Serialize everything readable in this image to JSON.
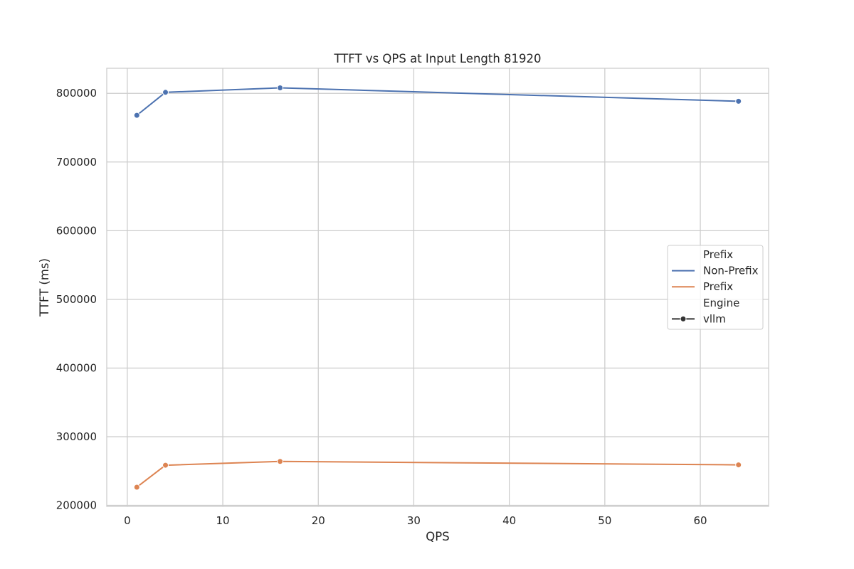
{
  "chart_data": {
    "type": "line",
    "title": "TTFT vs QPS at Input Length 81920",
    "xlabel": "QPS",
    "ylabel": "TTFT (ms)",
    "xlim": [
      -2.15,
      67.15
    ],
    "ylim": [
      198500,
      836500
    ],
    "xticks": [
      0,
      10,
      20,
      30,
      40,
      50,
      60
    ],
    "xtick_labels": [
      "0",
      "10",
      "20",
      "30",
      "40",
      "50",
      "60"
    ],
    "yticks": [
      200000,
      300000,
      400000,
      500000,
      600000,
      700000,
      800000
    ],
    "ytick_labels": [
      "200000",
      "300000",
      "400000",
      "500000",
      "600000",
      "700000",
      "800000"
    ],
    "grid": true,
    "series": [
      {
        "name": "Non-Prefix",
        "color": "#4c72b0",
        "marker": "circle",
        "x": [
          1,
          4,
          16,
          64
        ],
        "y": [
          768000,
          801500,
          808000,
          788500
        ]
      },
      {
        "name": "Prefix",
        "color": "#dd8452",
        "marker": "circle",
        "x": [
          1,
          4,
          16,
          64
        ],
        "y": [
          226500,
          258500,
          264000,
          259000
        ]
      }
    ],
    "legend": {
      "placement": "center-right",
      "entries": [
        {
          "label": "Prefix",
          "kind": "title"
        },
        {
          "label": "Non-Prefix",
          "kind": "line",
          "color": "#4c72b0"
        },
        {
          "label": "Prefix",
          "kind": "line",
          "color": "#dd8452"
        },
        {
          "label": "Engine",
          "kind": "title"
        },
        {
          "label": "vllm",
          "kind": "marker-line",
          "color": "#333333"
        }
      ]
    }
  }
}
